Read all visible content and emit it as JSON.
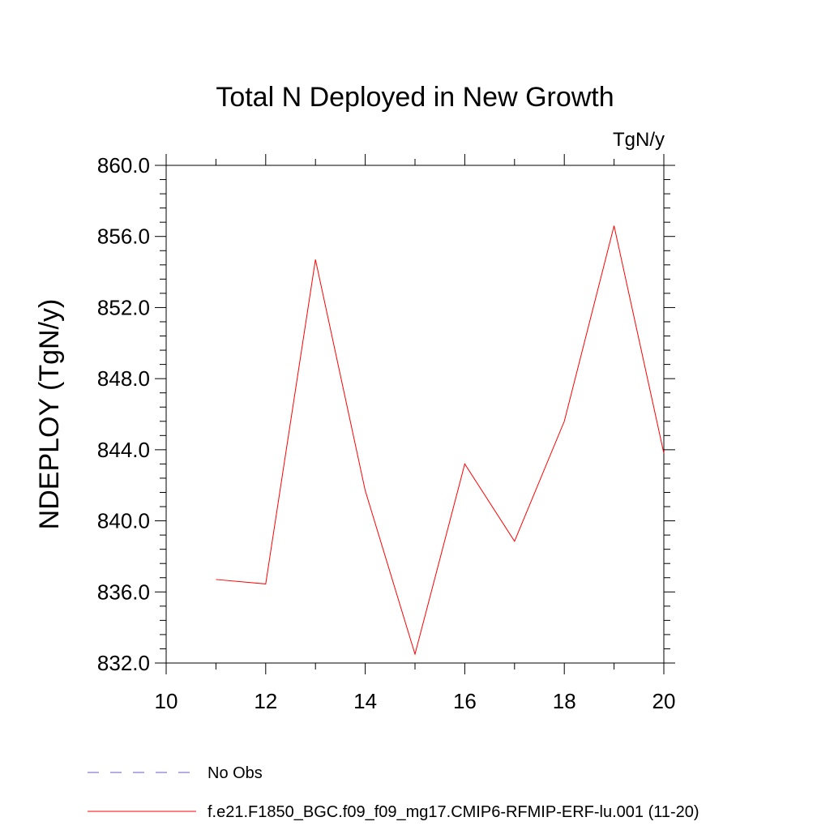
{
  "chart_data": {
    "type": "line",
    "title": "Total N Deployed in New Growth",
    "units_label": "TgN/y",
    "xlabel": "",
    "ylabel": "NDEPLOY  (TgN/y)",
    "xlim": [
      10,
      20
    ],
    "ylim": [
      832.0,
      860.0
    ],
    "x_ticks": [
      "10",
      "12",
      "14",
      "16",
      "18",
      "20"
    ],
    "y_ticks": [
      "832.0",
      "836.0",
      "840.0",
      "844.0",
      "848.0",
      "852.0",
      "856.0",
      "860.0"
    ],
    "grid": false,
    "legend_position": "bottom-left",
    "series": [
      {
        "name": "f.e21.F1850_BGC.f09_f09_mg17.CMIP6-RFMIP-ERF-lu.001 (11-20)",
        "color": "#ff0000",
        "dash": "solid",
        "x": [
          11,
          12,
          13,
          14,
          15,
          16,
          17,
          18,
          19,
          20
        ],
        "y": [
          836.7,
          836.45,
          854.7,
          841.7,
          832.5,
          843.2,
          838.85,
          845.6,
          856.6,
          843.8
        ]
      },
      {
        "name": "No Obs",
        "color": "#6a5acd",
        "dash": "dashed",
        "x": [],
        "y": []
      }
    ]
  }
}
